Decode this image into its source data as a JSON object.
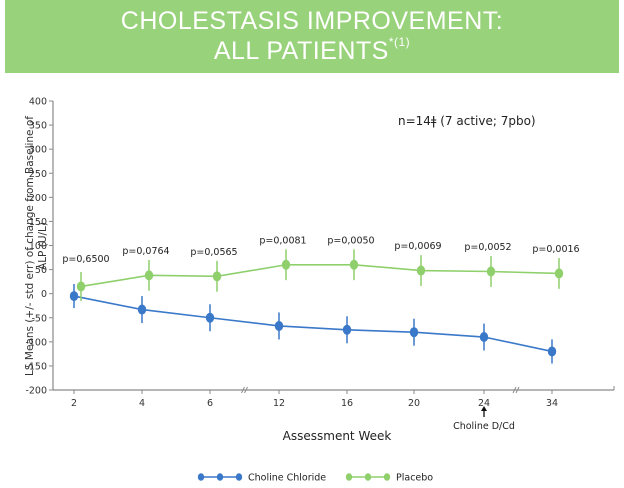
{
  "title": {
    "line1": "CHOLESTASIS IMPROVEMENT:",
    "line2": "ALL PATIENTS",
    "line2_sup": "*(1)",
    "banner_color": "#98d27a"
  },
  "annotation": "n=14ǂ (7 active; 7pbo)",
  "chart_data": {
    "type": "line",
    "title": "CHOLESTASIS IMPROVEMENT: ALL PATIENTS*(1)",
    "xlabel": "Assessment Week",
    "ylabel_line1": "LS Means (+/- std err) of change from Baseline of",
    "ylabel_line2": "ALP (U/L)",
    "categories": [
      "2",
      "4",
      "6",
      "12",
      "16",
      "20",
      "24",
      "34"
    ],
    "axis_breaks_after": [
      "6",
      "24"
    ],
    "ylim": [
      -200,
      400
    ],
    "yticks": [
      400,
      350,
      300,
      250,
      200,
      150,
      100,
      50,
      0,
      -50,
      -100,
      -150,
      -200
    ],
    "grid": false,
    "legend_position": "bottom",
    "series": [
      {
        "name": "Choline Chloride",
        "color": "#3a78c9",
        "values": [
          -5,
          -33,
          -50,
          -67,
          -75,
          -80,
          -90,
          -120
        ],
        "err": [
          25,
          28,
          28,
          28,
          28,
          28,
          28,
          25
        ]
      },
      {
        "name": "Placebo",
        "color": "#8fcf6c",
        "values": [
          15,
          38,
          36,
          60,
          60,
          48,
          46,
          42
        ],
        "err": [
          30,
          32,
          32,
          32,
          32,
          32,
          32,
          32
        ]
      }
    ],
    "p_values": [
      "p=0,6500",
      "p=0,0764",
      "p=0,0565",
      "p=0,0081",
      "p=0,0050",
      "p=0,0069",
      "p=0,0052",
      "p=0,0016"
    ],
    "annotations": [
      {
        "at": "24",
        "text": "Choline D/Cd",
        "arrow": "up"
      }
    ]
  }
}
